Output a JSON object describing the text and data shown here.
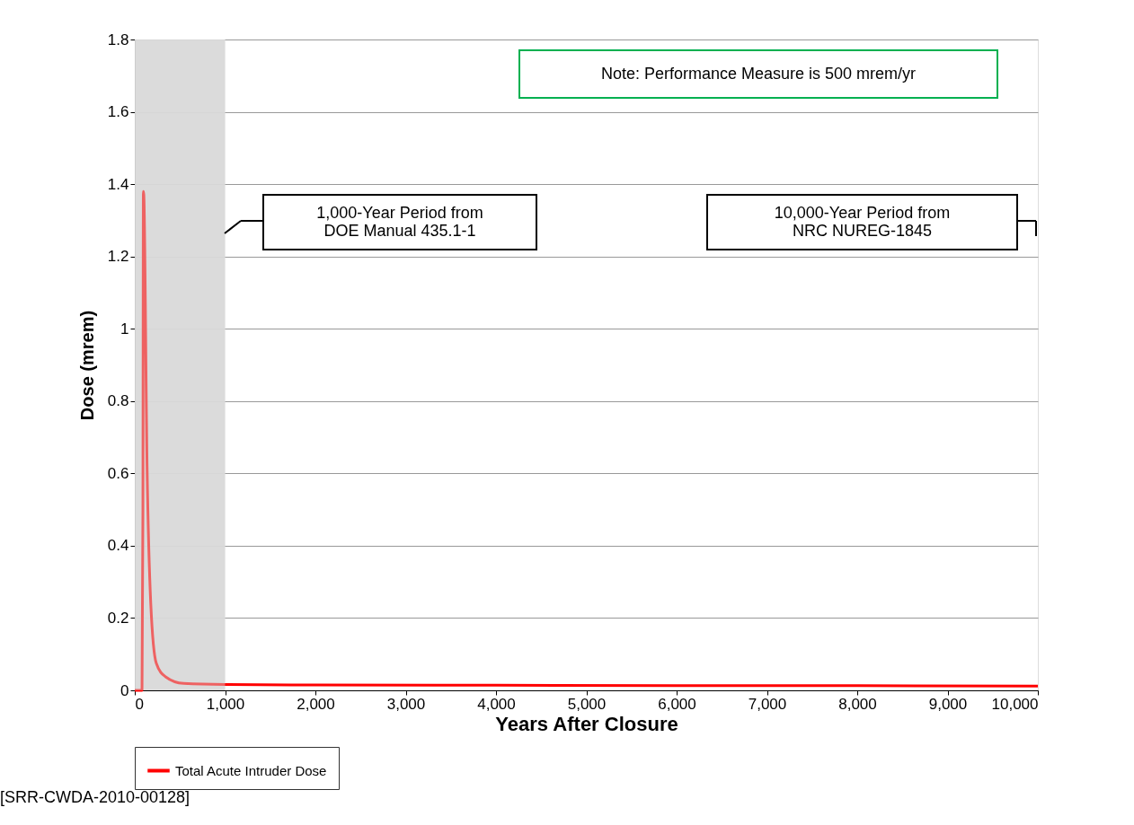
{
  "chart_data": {
    "type": "line",
    "xlabel": "Years After Closure",
    "ylabel": "Dose (mrem)",
    "x": [
      0,
      80,
      90,
      95,
      100,
      136,
      177,
      238,
      338,
      542,
      1000,
      2000,
      4000,
      6000,
      8000,
      10000
    ],
    "series": [
      {
        "name": "Total Acute Intruder Dose",
        "color": "#ff0000",
        "values": [
          0,
          0,
          0.5,
          1.38,
          1.37,
          0.62,
          0.24,
          0.075,
          0.038,
          0.019,
          0.016,
          0.015,
          0.014,
          0.013,
          0.013,
          0.012
        ]
      }
    ],
    "xlim": [
      0,
      10000
    ],
    "xticks": [
      {
        "value": 0,
        "label": "0"
      },
      {
        "value": 1000,
        "label": "1,000"
      },
      {
        "value": 2000,
        "label": "2,000"
      },
      {
        "value": 3000,
        "label": "3,000"
      },
      {
        "value": 4000,
        "label": "4,000"
      },
      {
        "value": 5000,
        "label": "5,000"
      },
      {
        "value": 6000,
        "label": "6,000"
      },
      {
        "value": 7000,
        "label": "7,000"
      },
      {
        "value": 8000,
        "label": "8,000"
      },
      {
        "value": 9000,
        "label": "9,000"
      },
      {
        "value": 10000,
        "label": "10,000"
      }
    ],
    "ylim": [
      0,
      1.8
    ],
    "yticks": [
      0,
      0.2,
      0.4,
      0.6,
      0.8,
      1,
      1.2,
      1.4,
      1.6,
      1.8
    ],
    "bands": [
      {
        "axis": "x",
        "from": 0,
        "to": 1000,
        "color": "#d9d9d9"
      }
    ],
    "annotations": [
      "Note: Performance Measure is 500 mrem/yr",
      "1,000-Year Period from\nDOE Manual 435.1-1",
      "10,000-Year Period from\nNRC NUREG-1845",
      "[SRR-CWDA-2010-00128]"
    ],
    "grid": "y",
    "legend": "bottom",
    "marker": "none",
    "line_style": "solid"
  }
}
